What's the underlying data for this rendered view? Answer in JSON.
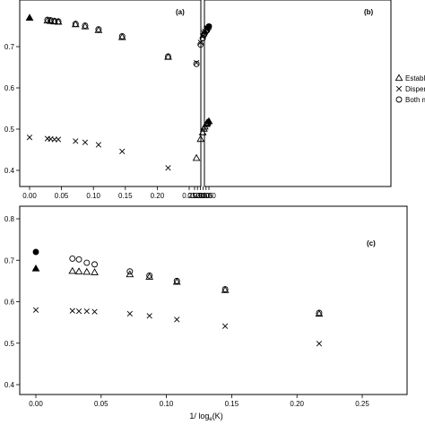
{
  "legend": {
    "items": [
      {
        "marker": "triangle",
        "label": "Establishe"
      },
      {
        "marker": "cross",
        "label": "Dispersers"
      },
      {
        "marker": "circle",
        "label": "Both morp"
      }
    ]
  },
  "x_axis_label": "1/ log",
  "x_axis_label_sub": "e",
  "x_axis_label_tail": "(K)",
  "chart_data": [
    {
      "type": "scatter",
      "panel_label": "(a)",
      "xlim": [
        0,
        0.25
      ],
      "ylim": [
        0.4,
        0.8
      ],
      "xticks": [
        0,
        0.05,
        0.1,
        0.15,
        0.2,
        0.25
      ],
      "xtick_labels": [
        "0.00",
        "0.05",
        "0.10",
        "0.15",
        "0.20",
        "0.25"
      ],
      "yticks": [
        0.4,
        0.5,
        0.6,
        0.7
      ],
      "ytick_labels": [
        "0.4",
        "0.5",
        "0.6",
        "0.7"
      ],
      "series": [
        {
          "marker": "triangle",
          "filled_first": true,
          "x": [
            0,
            0.028,
            0.033,
            0.039,
            0.045,
            0.072,
            0.087,
            0.108,
            0.145,
            0.217
          ],
          "y": [
            0.77,
            0.763,
            0.762,
            0.761,
            0.76,
            0.754,
            0.749,
            0.74,
            0.723,
            0.675
          ]
        },
        {
          "marker": "circle",
          "filled_first": false,
          "x": [
            0.028,
            0.033,
            0.039,
            0.045,
            0.072,
            0.087,
            0.108,
            0.145,
            0.217
          ],
          "y": [
            0.765,
            0.764,
            0.762,
            0.761,
            0.755,
            0.751,
            0.742,
            0.725,
            0.676
          ]
        },
        {
          "marker": "cross",
          "filled_first": false,
          "x": [
            0,
            0.028,
            0.033,
            0.039,
            0.045,
            0.072,
            0.087,
            0.108,
            0.145,
            0.217
          ],
          "y": [
            0.48,
            0.477,
            0.476,
            0.475,
            0.475,
            0.471,
            0.468,
            0.462,
            0.446,
            0.406
          ]
        }
      ]
    },
    {
      "type": "scatter",
      "panel_label": "(b)",
      "xlim": [
        0,
        0.25
      ],
      "ylim": [
        0.4,
        0.8
      ],
      "xticks": [
        0,
        0.05,
        0.1,
        0.15,
        0.2,
        0.25
      ],
      "xtick_labels": [
        "0.00",
        "0.05",
        "0.10",
        "0.15",
        "0.20",
        "0.25"
      ],
      "yticks": [
        0.4,
        0.5,
        0.6,
        0.7
      ],
      "ytick_labels": [],
      "series": [
        {
          "marker": "triangle",
          "filled_first": true,
          "x": [
            0,
            0.028,
            0.033,
            0.039,
            0.045,
            0.072,
            0.087,
            0.108,
            0.145,
            0.217
          ],
          "y": [
            0.519,
            0.516,
            0.515,
            0.514,
            0.512,
            0.506,
            0.501,
            0.492,
            0.476,
            0.43
          ]
        },
        {
          "marker": "cross",
          "filled_first": false,
          "x": [
            0,
            0.028,
            0.033,
            0.039,
            0.045,
            0.072,
            0.087,
            0.108,
            0.145,
            0.217
          ],
          "y": [
            0.748,
            0.745,
            0.744,
            0.743,
            0.742,
            0.737,
            0.733,
            0.725,
            0.71,
            0.661
          ]
        },
        {
          "marker": "circle",
          "filled_first": true,
          "x": [
            0,
            0.028,
            0.033,
            0.039,
            0.045,
            0.072,
            0.087,
            0.108,
            0.145,
            0.217
          ],
          "y": [
            0.749,
            0.741,
            0.74,
            0.739,
            0.738,
            0.732,
            0.728,
            0.72,
            0.705,
            0.658
          ]
        }
      ]
    },
    {
      "type": "scatter",
      "panel_label": "(c)",
      "xlim": [
        0,
        0.25
      ],
      "ylim": [
        0.4,
        0.8
      ],
      "xticks": [
        0,
        0.05,
        0.1,
        0.15,
        0.2,
        0.25
      ],
      "xtick_labels": [
        "0.00",
        "0.05",
        "0.10",
        "0.15",
        "0.20",
        "0.25"
      ],
      "yticks": [
        0.4,
        0.5,
        0.6,
        0.7,
        0.8
      ],
      "ytick_labels": [
        "0.4",
        "0.5",
        "0.6",
        "0.7",
        "0.8"
      ],
      "series": [
        {
          "marker": "circle",
          "filled_first": true,
          "x": [
            0,
            0.028,
            0.033,
            0.039,
            0.045,
            0.072,
            0.087,
            0.108,
            0.145,
            0.217
          ],
          "y": [
            0.72,
            0.704,
            0.702,
            0.694,
            0.69,
            0.673,
            0.663,
            0.65,
            0.63,
            0.573
          ]
        },
        {
          "marker": "triangle",
          "filled_first": true,
          "x": [
            0,
            0.028,
            0.033,
            0.039,
            0.045,
            0.072,
            0.087,
            0.108,
            0.145,
            0.217
          ],
          "y": [
            0.68,
            0.674,
            0.673,
            0.672,
            0.671,
            0.666,
            0.66,
            0.648,
            0.628,
            0.571
          ]
        },
        {
          "marker": "cross",
          "filled_first": false,
          "x": [
            0,
            0.028,
            0.033,
            0.039,
            0.045,
            0.072,
            0.087,
            0.108,
            0.145,
            0.217
          ],
          "y": [
            0.58,
            0.578,
            0.577,
            0.577,
            0.576,
            0.571,
            0.566,
            0.557,
            0.541,
            0.499
          ]
        }
      ]
    }
  ]
}
